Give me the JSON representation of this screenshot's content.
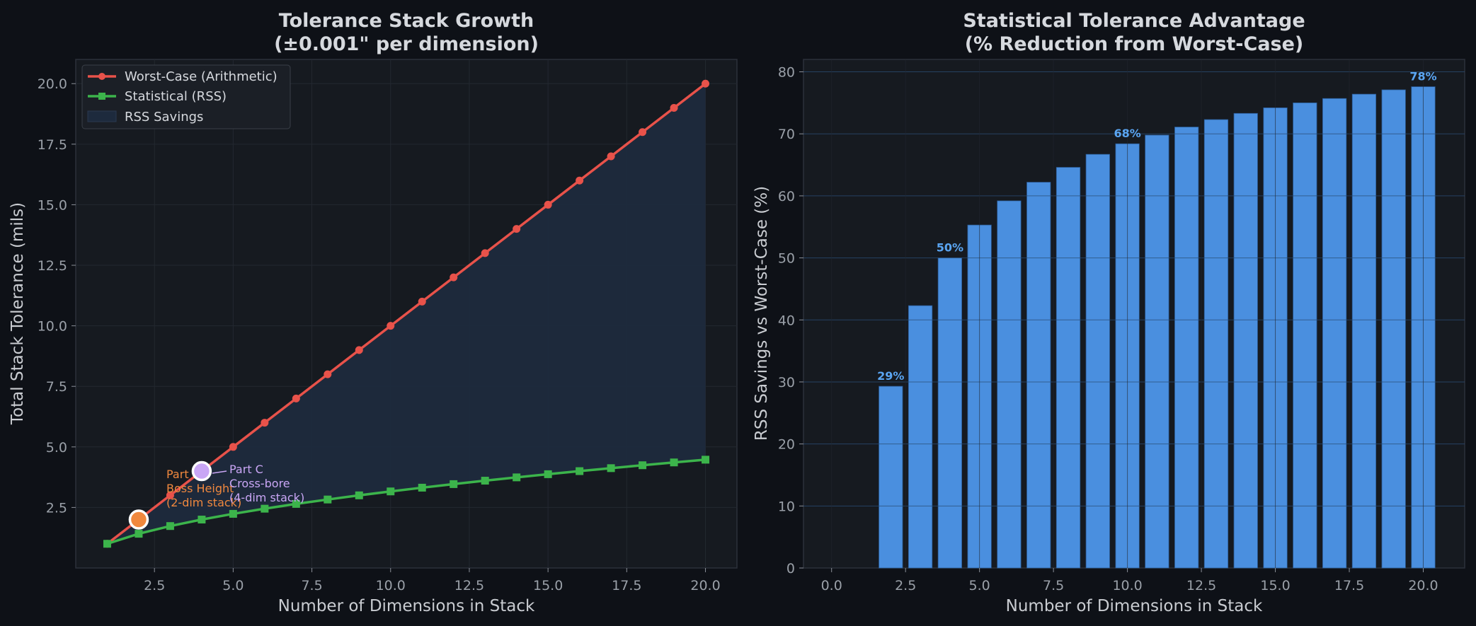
{
  "colors": {
    "background": "#0e1117",
    "panel": "#161a20",
    "worst_case": "#e8524a",
    "statistical": "#3cb44b",
    "savings_fill": "#1d2a3d",
    "bar": "#4a8fdf",
    "bar_label": "#5aa5f2",
    "part_b": "#f0883e",
    "part_c": "#c9a6f5"
  },
  "chart_data": [
    {
      "type": "line",
      "title": "Tolerance Stack Growth",
      "subtitle": "(±0.001\" per dimension)",
      "xlabel": "Number of Dimensions in Stack",
      "ylabel": "Total Stack Tolerance (mils)",
      "xlim": [
        0,
        21
      ],
      "ylim": [
        0,
        21
      ],
      "xticks": [
        2.5,
        5.0,
        7.5,
        10.0,
        12.5,
        15.0,
        17.5,
        20.0
      ],
      "xtick_labels": [
        "2.5",
        "5.0",
        "7.5",
        "10.0",
        "12.5",
        "15.0",
        "17.5",
        "20.0"
      ],
      "yticks": [
        2.5,
        5.0,
        7.5,
        10.0,
        12.5,
        15.0,
        17.5,
        20.0
      ],
      "ytick_labels": [
        "2.5",
        "5.0",
        "7.5",
        "10.0",
        "12.5",
        "15.0",
        "17.5",
        "20.0"
      ],
      "grid": true,
      "legend_position": "top-left",
      "x": [
        1,
        2,
        3,
        4,
        5,
        6,
        7,
        8,
        9,
        10,
        11,
        12,
        13,
        14,
        15,
        16,
        17,
        18,
        19,
        20
      ],
      "series": [
        {
          "name": "Worst-Case (Arithmetic)",
          "marker": "circle",
          "values": [
            1,
            2,
            3,
            4,
            5,
            6,
            7,
            8,
            9,
            10,
            11,
            12,
            13,
            14,
            15,
            16,
            17,
            18,
            19,
            20
          ]
        },
        {
          "name": "Statistical (RSS)",
          "marker": "square",
          "values": [
            1.0,
            1.414,
            1.732,
            2.0,
            2.236,
            2.449,
            2.646,
            2.828,
            3.0,
            3.162,
            3.317,
            3.464,
            3.606,
            3.742,
            3.873,
            4.0,
            4.123,
            4.243,
            4.359,
            4.472
          ]
        }
      ],
      "fill_label": "RSS Savings",
      "annotations": [
        {
          "x": 2,
          "y": 2,
          "lines": [
            "Part B",
            "Boss Height",
            "(2-dim stack)"
          ]
        },
        {
          "x": 4,
          "y": 4,
          "lines": [
            "Part C",
            "Cross-bore",
            "(4-dim stack)"
          ]
        }
      ]
    },
    {
      "type": "bar",
      "title": "Statistical Tolerance Advantage",
      "subtitle": "(% Reduction from Worst-Case)",
      "xlabel": "Number of Dimensions in Stack",
      "ylabel": "RSS Savings vs Worst-Case (%)",
      "xlim": [
        -0.95,
        21.4
      ],
      "ylim": [
        0,
        82
      ],
      "xticks": [
        0,
        2.5,
        5.0,
        7.5,
        10.0,
        12.5,
        15.0,
        17.5,
        20.0
      ],
      "xtick_labels": [
        "0.0",
        "2.5",
        "5.0",
        "7.5",
        "10.0",
        "12.5",
        "15.0",
        "17.5",
        "20.0"
      ],
      "yticks": [
        0,
        10,
        20,
        30,
        40,
        50,
        60,
        70,
        80
      ],
      "ytick_labels": [
        "0",
        "10",
        "20",
        "30",
        "40",
        "50",
        "60",
        "70",
        "80"
      ],
      "grid": true,
      "x": [
        2,
        3,
        4,
        5,
        6,
        7,
        8,
        9,
        10,
        11,
        12,
        13,
        14,
        15,
        16,
        17,
        18,
        19,
        20
      ],
      "values": [
        29.3,
        42.3,
        50.0,
        55.3,
        59.2,
        62.2,
        64.6,
        66.7,
        68.4,
        69.8,
        71.1,
        72.3,
        73.3,
        74.2,
        75.0,
        75.7,
        76.4,
        77.1,
        77.6
      ],
      "data_labels": [
        {
          "x": 2,
          "text": "29%"
        },
        {
          "x": 4,
          "text": "50%"
        },
        {
          "x": 10,
          "text": "68%"
        },
        {
          "x": 20,
          "text": "78%"
        }
      ]
    }
  ]
}
